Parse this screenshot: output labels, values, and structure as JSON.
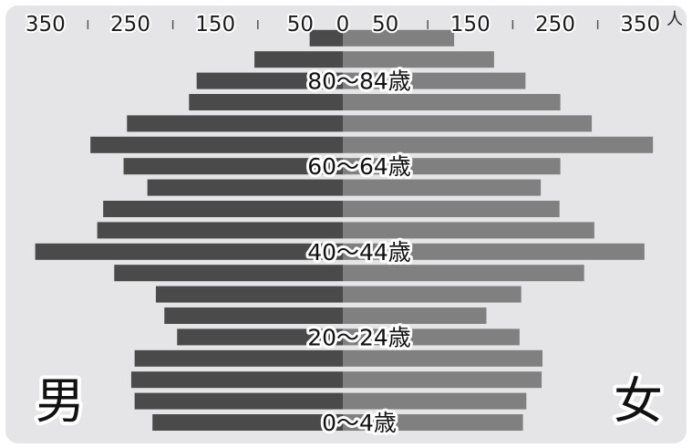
{
  "chart_data": {
    "type": "bar",
    "orientation": "horizontal",
    "subtype": "population-pyramid",
    "unit": "人",
    "xlim": [
      -350,
      350
    ],
    "tick_labels": [
      "350",
      "250",
      "150",
      "50",
      "0",
      "50",
      "150",
      "250",
      "350"
    ],
    "tick_values": [
      -350,
      -250,
      -150,
      -50,
      0,
      50,
      150,
      250,
      350
    ],
    "categories": [
      "0〜4歳",
      "5〜9歳",
      "10〜14歳",
      "15〜19歳",
      "20〜24歳",
      "25〜29歳",
      "30〜34歳",
      "35〜39歳",
      "40〜44歳",
      "45〜49歳",
      "50〜54歳",
      "55〜59歳",
      "60〜64歳",
      "65〜69歳",
      "70〜74歳",
      "75〜79歳",
      "80〜84歳",
      "85〜89歳",
      "90〜94歳"
    ],
    "age_labels": [
      {
        "category_index": 0,
        "text": "0〜4歳"
      },
      {
        "category_index": 4,
        "text": "20〜24歳"
      },
      {
        "category_index": 8,
        "text": "40〜44歳"
      },
      {
        "category_index": 12,
        "text": "60〜64歳"
      },
      {
        "category_index": 16,
        "text": "80〜84歳"
      }
    ],
    "series": [
      {
        "name": "男",
        "color": "#4a4a4a",
        "values": [
          224,
          245,
          249,
          245,
          195,
          210,
          220,
          269,
          362,
          289,
          282,
          230,
          258,
          297,
          254,
          181,
          172,
          104,
          39
        ]
      },
      {
        "name": "女",
        "color": "#808080",
        "values": [
          212,
          216,
          234,
          235,
          208,
          169,
          210,
          284,
          355,
          296,
          255,
          233,
          256,
          365,
          293,
          256,
          215,
          178,
          131
        ]
      }
    ],
    "grid": false
  }
}
